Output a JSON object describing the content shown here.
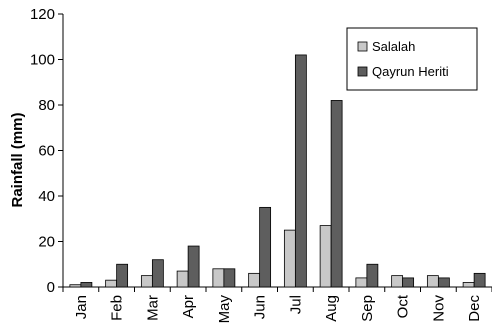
{
  "chart_data": {
    "type": "bar",
    "title": "",
    "xlabel": "",
    "ylabel": "Rainfall (mm)",
    "ylim": [
      0,
      120
    ],
    "yticks": [
      0,
      20,
      40,
      60,
      80,
      100,
      120
    ],
    "grid": false,
    "legend_position": "top-right",
    "categories": [
      "Jan",
      "Feb",
      "Mar",
      "Apr",
      "May",
      "Jun",
      "Jul",
      "Aug",
      "Sep",
      "Oct",
      "Nov",
      "Dec"
    ],
    "series": [
      {
        "name": "Salalah",
        "color": "#c8c8c8",
        "values": [
          1,
          3,
          5,
          7,
          8,
          6,
          25,
          27,
          4,
          5,
          5,
          2
        ]
      },
      {
        "name": "Qayrun Heriti",
        "color": "#5e5e5e",
        "values": [
          2,
          10,
          12,
          18,
          8,
          35,
          102,
          82,
          10,
          4,
          4,
          6
        ]
      }
    ]
  }
}
